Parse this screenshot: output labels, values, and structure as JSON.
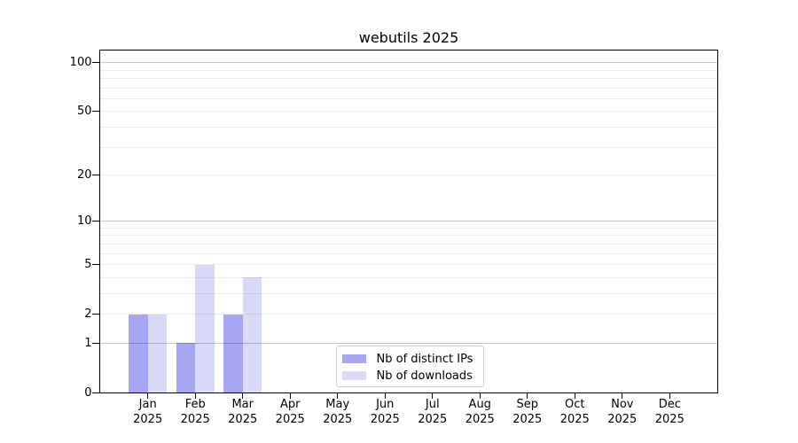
{
  "chart_data": {
    "type": "bar",
    "title": "webutils 2025",
    "xlabel": "",
    "ylabel": "",
    "categories": [
      "Jan 2025",
      "Feb 2025",
      "Mar 2025",
      "Apr 2025",
      "May 2025",
      "Jun 2025",
      "Jul 2025",
      "Aug 2025",
      "Sep 2025",
      "Oct 2025",
      "Nov 2025",
      "Dec 2025"
    ],
    "series": [
      {
        "name": "Nb of distinct IPs",
        "color": "#a6a6f3",
        "values": [
          2,
          1,
          2,
          0,
          0,
          0,
          0,
          0,
          0,
          0,
          0,
          0
        ]
      },
      {
        "name": "Nb of downloads",
        "color": "#d9d9f8",
        "values": [
          2,
          5,
          4,
          0,
          0,
          0,
          0,
          0,
          0,
          0,
          0,
          0
        ]
      }
    ],
    "y_axis": {
      "scale": "log1p",
      "min": 0,
      "max": 120,
      "tick_values": [
        0,
        1,
        2,
        5,
        10,
        20,
        50,
        100
      ],
      "major_grid": [
        1,
        10,
        100
      ],
      "minor_grid": [
        2,
        3,
        4,
        5,
        6,
        7,
        8,
        9,
        20,
        30,
        40,
        50,
        60,
        70,
        80,
        90
      ]
    },
    "legend": {
      "position": "lower center",
      "entries": [
        "Nb of distinct IPs",
        "Nb of downloads"
      ]
    },
    "grid": "both"
  },
  "colors": {
    "axis": "#000000",
    "legend_border": "#cccccc",
    "bar_distinct_ips": "#a6a6f3",
    "bar_downloads": "#d9d9f8"
  }
}
